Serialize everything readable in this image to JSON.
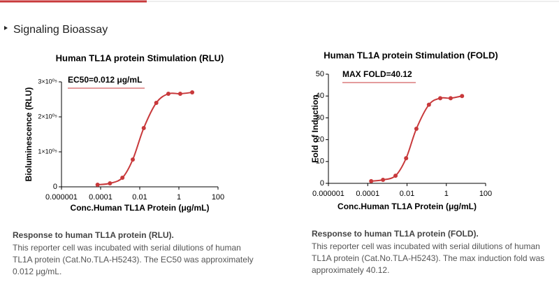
{
  "section_title": "Signaling Bioassay",
  "chart_data": [
    {
      "type": "line",
      "title": "Human TL1A protein Stimulation (RLU)",
      "xlabel": "Conc.Human TL1A Protein (μg/mL)",
      "ylabel": "Bioluminescence (RLU)",
      "annotation": "EC50=0.012 μg/mL",
      "color": "#c8393b",
      "log_x": true,
      "x": [
        7e-05,
        0.0003,
        0.0013,
        0.0044,
        0.016,
        0.07,
        0.29,
        1.17,
        4.8
      ],
      "values": [
        6000,
        10000,
        26000,
        78000,
        168000,
        240000,
        266000,
        266000,
        270000
      ],
      "xlim": [
        1e-06,
        100
      ],
      "xticks": [
        1e-06,
        0.0001,
        0.01,
        1,
        100
      ],
      "ylim": [
        0,
        300000
      ],
      "yticks": [
        0,
        {
          "value": 100000,
          "label": "1×10⁰⁵"
        },
        {
          "value": 200000,
          "label": "2×10⁰⁵"
        },
        {
          "value": 300000,
          "label": "3×10⁰⁵"
        }
      ]
    },
    {
      "type": "line",
      "title": "Human TL1A protein Stimulation (FOLD)",
      "xlabel": "Conc.Human TL1A Protein (μg/mL)",
      "ylabel": "Fold of Induction",
      "annotation": "MAX FOLD=40.12",
      "color": "#c8393b",
      "log_x": true,
      "x": [
        0.00015,
        0.0006,
        0.0026,
        0.009,
        0.03,
        0.13,
        0.49,
        1.66,
        6.3
      ],
      "values": [
        1,
        1.6,
        3.5,
        11.5,
        25,
        36,
        39,
        39,
        40
      ],
      "xlim": [
        1e-06,
        100
      ],
      "xticks": [
        1e-06,
        0.0001,
        0.01,
        1,
        100
      ],
      "ylim": [
        0,
        50
      ],
      "yticks": [
        0,
        10,
        20,
        30,
        40,
        50
      ]
    }
  ],
  "captions": [
    {
      "title": "Response to human TL1A protein (RLU).",
      "text": "This reporter cell was incubated with serial dilutions of human TL1A protein (Cat.No.TLA-H5243). The EC50 was approximately 0.012 μg/mL."
    },
    {
      "title": "Response to human TL1A protein (FOLD).",
      "text": "This reporter cell was incubated with serial dilutions of human TL1A protein (Cat.No.TLA-H5243). The max induction fold was approximately 40.12."
    }
  ]
}
